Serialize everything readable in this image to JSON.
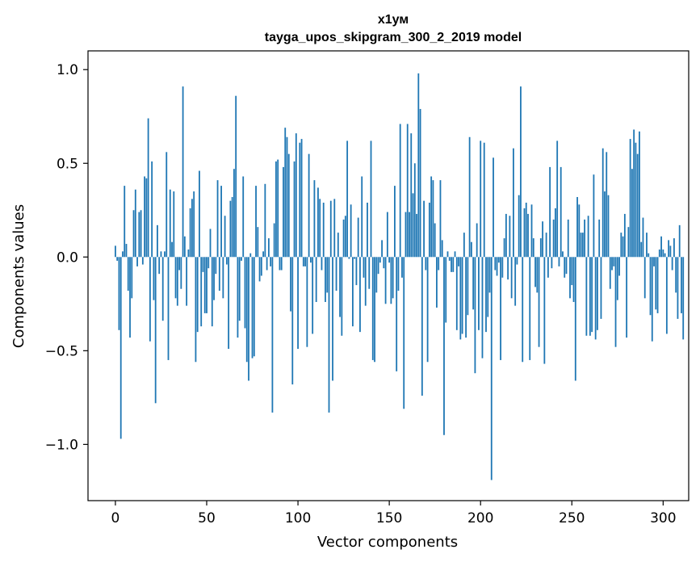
{
  "chart_data": {
    "type": "bar",
    "title": "х1ум",
    "subtitle": "tayga_upos_skipgram_300_2_2019 model",
    "xlabel": "Vector components",
    "ylabel": "Components values",
    "xlim": [
      -15,
      314
    ],
    "ylim": [
      -1.3,
      1.1
    ],
    "xticks": [
      0,
      50,
      100,
      150,
      200,
      250,
      300
    ],
    "xtick_labels": [
      "0",
      "50",
      "100",
      "150",
      "200",
      "250",
      "300"
    ],
    "yticks": [
      1.0,
      0.5,
      0.0,
      -0.5,
      -1.0
    ],
    "ytick_labels": [
      "1.0",
      "0.5",
      "0.0",
      "−0.5",
      "−1.0"
    ],
    "grid": false,
    "bar_color": "#1f77b4",
    "series": [
      {
        "name": "components",
        "values": [
          0.06,
          -0.02,
          -0.39,
          -0.97,
          0.03,
          0.38,
          0.07,
          -0.18,
          -0.43,
          -0.22,
          0.25,
          0.36,
          -0.05,
          0.24,
          0.25,
          -0.04,
          0.43,
          0.42,
          0.74,
          -0.45,
          0.51,
          -0.23,
          -0.78,
          0.17,
          -0.09,
          0.03,
          -0.34,
          0.03,
          0.56,
          -0.55,
          0.36,
          0.08,
          0.35,
          -0.22,
          -0.26,
          -0.07,
          -0.17,
          0.91,
          0.11,
          -0.26,
          0.04,
          0.26,
          0.31,
          0.35,
          -0.56,
          -0.4,
          0.46,
          -0.37,
          -0.08,
          -0.3,
          -0.3,
          -0.06,
          0.15,
          -0.37,
          -0.23,
          -0.09,
          0.41,
          -0.18,
          0.38,
          -0.22,
          0.22,
          -0.04,
          -0.49,
          0.3,
          0.32,
          0.47,
          0.86,
          -0.43,
          -0.34,
          -0.02,
          0.43,
          -0.38,
          -0.56,
          -0.66,
          0.02,
          -0.54,
          -0.53,
          0.38,
          0.16,
          -0.13,
          -0.1,
          0.03,
          0.39,
          -0.07,
          0.1,
          -0.05,
          -0.83,
          0.18,
          0.51,
          0.52,
          -0.07,
          -0.07,
          0.48,
          0.69,
          0.64,
          0.55,
          -0.29,
          -0.68,
          0.51,
          0.66,
          -0.49,
          0.61,
          0.63,
          -0.05,
          -0.05,
          -0.48,
          0.55,
          -0.03,
          -0.41,
          0.41,
          -0.24,
          0.37,
          0.31,
          -0.07,
          0.29,
          -0.24,
          -0.19,
          -0.83,
          0.3,
          -0.66,
          0.31,
          -0.18,
          0.13,
          -0.32,
          -0.42,
          0.2,
          0.22,
          0.62,
          -0.01,
          0.28,
          -0.37,
          -0.01,
          -0.15,
          0.21,
          -0.4,
          0.43,
          -0.11,
          -0.26,
          0.29,
          -0.17,
          0.62,
          -0.55,
          -0.56,
          -0.19,
          -0.09,
          -0.03,
          0.09,
          -0.06,
          -0.25,
          0.24,
          -0.03,
          -0.25,
          -0.22,
          0.38,
          -0.61,
          -0.18,
          0.71,
          -0.11,
          -0.81,
          0.24,
          0.71,
          0.24,
          0.66,
          0.34,
          0.5,
          0.23,
          0.98,
          0.79,
          -0.74,
          0.3,
          -0.07,
          -0.56,
          0.29,
          0.43,
          0.41,
          0.18,
          -0.27,
          -0.07,
          0.41,
          0.09,
          -0.95,
          -0.35,
          0.03,
          -0.02,
          -0.08,
          -0.08,
          0.03,
          -0.39,
          -0.05,
          -0.44,
          -0.41,
          0.13,
          -0.43,
          -0.31,
          0.64,
          0.08,
          -0.28,
          -0.62,
          0.18,
          -0.39,
          0.62,
          -0.54,
          0.61,
          -0.4,
          -0.32,
          -0.19,
          -1.19,
          0.53,
          -0.07,
          -0.1,
          -0.03,
          -0.55,
          -0.11,
          0.1,
          0.23,
          -0.12,
          0.22,
          -0.22,
          0.58,
          -0.26,
          -0.04,
          0.33,
          0.91,
          -0.56,
          0.26,
          0.29,
          0.23,
          -0.55,
          0.28,
          0.1,
          -0.16,
          -0.19,
          -0.48,
          0.1,
          0.19,
          -0.57,
          0.13,
          -0.11,
          0.48,
          -0.06,
          0.2,
          0.26,
          0.62,
          -0.05,
          0.48,
          0.03,
          -0.11,
          -0.09,
          0.2,
          -0.22,
          -0.15,
          -0.24,
          -0.66,
          0.32,
          0.28,
          0.13,
          0.13,
          0.2,
          -0.42,
          0.22,
          -0.42,
          -0.4,
          0.44,
          -0.44,
          -0.39,
          0.2,
          -0.33,
          0.58,
          0.35,
          0.56,
          0.33,
          -0.17,
          -0.07,
          -0.05,
          -0.48,
          -0.23,
          -0.1,
          0.13,
          0.11,
          0.23,
          -0.43,
          0.16,
          0.63,
          0.47,
          0.68,
          0.61,
          0.55,
          0.67,
          0.08,
          0.21,
          -0.22,
          0.13,
          0.02,
          -0.31,
          -0.45,
          -0.05,
          -0.28,
          -0.3,
          0.04,
          0.11,
          0.04,
          0.02,
          -0.41,
          0.09,
          0.06,
          -0.07,
          0.1,
          -0.19,
          -0.33,
          0.17,
          -0.3,
          -0.44
        ]
      }
    ]
  }
}
